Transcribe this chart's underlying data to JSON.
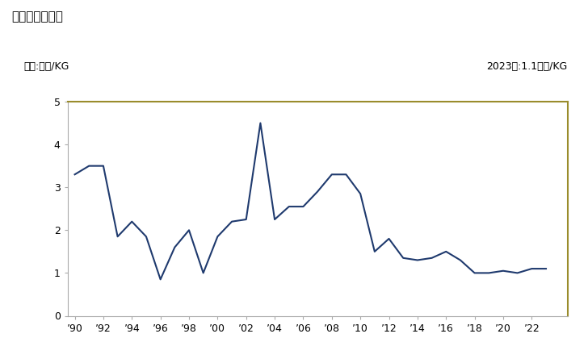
{
  "title": "輸入価格の推移",
  "ylabel": "単位:万円/KG",
  "annotation": "2023年:1.1万円/KG",
  "years": [
    1990,
    1991,
    1992,
    1993,
    1994,
    1995,
    1996,
    1997,
    1998,
    1999,
    2000,
    2001,
    2002,
    2003,
    2004,
    2005,
    2006,
    2007,
    2008,
    2009,
    2010,
    2011,
    2012,
    2013,
    2014,
    2015,
    2016,
    2017,
    2018,
    2019,
    2020,
    2021,
    2022,
    2023
  ],
  "values": [
    3.3,
    3.5,
    3.5,
    1.85,
    2.2,
    1.85,
    0.85,
    1.6,
    2.0,
    1.0,
    1.85,
    2.2,
    2.25,
    4.5,
    2.25,
    2.55,
    2.55,
    2.9,
    3.3,
    3.3,
    2.85,
    1.5,
    1.8,
    1.35,
    1.3,
    1.35,
    1.5,
    1.3,
    1.0,
    1.0,
    1.05,
    1.0,
    1.1,
    1.1
  ],
  "line_color": "#1f3a6e",
  "top_border_color": "#9a8c2c",
  "spine_color": "#aaaaaa",
  "ylim": [
    0,
    5
  ],
  "yticks": [
    0,
    1,
    2,
    3,
    4,
    5
  ],
  "xtick_years": [
    1990,
    1992,
    1994,
    1996,
    1998,
    2000,
    2002,
    2004,
    2006,
    2008,
    2010,
    2012,
    2014,
    2016,
    2018,
    2020,
    2022
  ],
  "background_color": "#ffffff",
  "plot_bg_color": "#ffffff",
  "title_fontsize": 11,
  "label_fontsize": 9,
  "tick_fontsize": 9
}
